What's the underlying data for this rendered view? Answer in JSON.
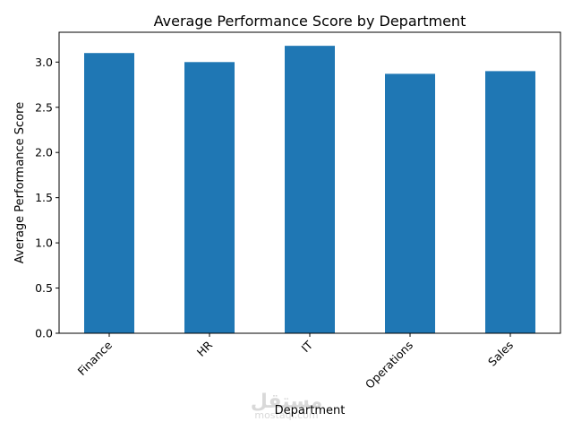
{
  "chart_data": {
    "type": "bar",
    "title": "Average Performance Score by Department",
    "xlabel": "Department",
    "ylabel": "Average Performance Score",
    "categories": [
      "Finance",
      "HR",
      "IT",
      "Operations",
      "Sales"
    ],
    "values": [
      3.1,
      3.0,
      3.18,
      2.87,
      2.9
    ],
    "ylim": [
      0,
      3.33
    ],
    "yticks": [
      "0.0",
      "0.5",
      "1.0",
      "1.5",
      "2.0",
      "2.5",
      "3.0"
    ],
    "bar_color": "#1f77b4",
    "grid": false,
    "legend": "none"
  },
  "watermark": {
    "logo_text": "مستقل",
    "url_text": "mostaql.com"
  }
}
